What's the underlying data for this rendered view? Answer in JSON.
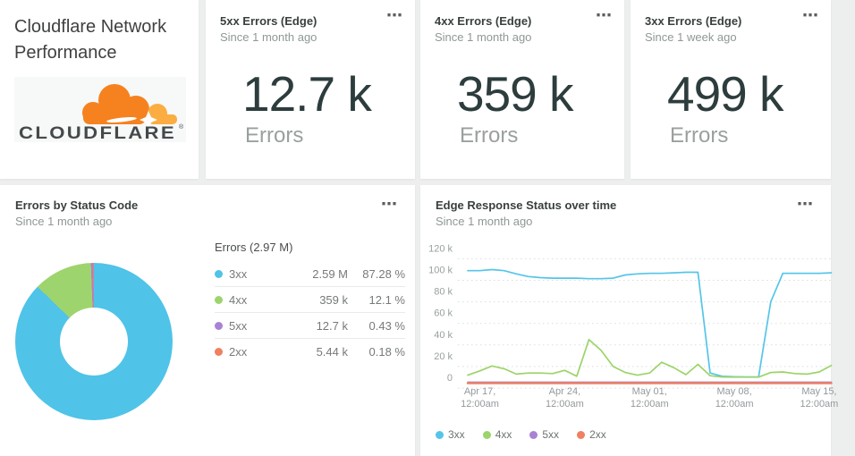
{
  "page": {
    "background": "#edefef",
    "card_background": "#ffffff"
  },
  "icons": {
    "card_menu": "⋯"
  },
  "title_card": {
    "heading": "Cloudflare Network Performance",
    "logo_text": "CLOUDFLARE",
    "logo_reg": "®",
    "logo_cloud_color": "#f6821f",
    "logo_cloud_light_color": "#fbad41",
    "logo_text_color": "#45494b"
  },
  "kpis": [
    {
      "title": "5xx Errors (Edge)",
      "subtitle": "Since 1 month ago",
      "value": "12.7 k",
      "unit_label": "Errors"
    },
    {
      "title": "4xx Errors (Edge)",
      "subtitle": "Since 1 month ago",
      "value": "359 k",
      "unit_label": "Errors"
    },
    {
      "title": "3xx Errors (Edge)",
      "subtitle": "Since 1 week ago",
      "value": "499 k",
      "unit_label": "Errors"
    }
  ],
  "chart_data": [
    {
      "type": "pie",
      "donut": true,
      "title": "Errors by Status Code",
      "subtitle": "Since 1 month ago",
      "total_label": "Errors (2.97 M)",
      "slices": [
        {
          "name": "3xx",
          "value_label": "2.59 M",
          "value": 2590000,
          "pct": 87.28,
          "pct_label": "87.28 %",
          "color": "#4fc3e8"
        },
        {
          "name": "4xx",
          "value_label": "359 k",
          "value": 359000,
          "pct": 12.1,
          "pct_label": "12.1 %",
          "color": "#9ed46e"
        },
        {
          "name": "5xx",
          "value_label": "12.7 k",
          "value": 12700,
          "pct": 0.43,
          "pct_label": "0.43 %",
          "color": "#a982d4"
        },
        {
          "name": "2xx",
          "value_label": "5.44 k",
          "value": 5440,
          "pct": 0.18,
          "pct_label": "0.18 %",
          "color": "#ef8060"
        }
      ]
    },
    {
      "type": "line",
      "title": "Edge Response Status over time",
      "subtitle": "Since 1 month ago",
      "grid": "dotted",
      "legend_position": "bottom",
      "ylim_k": [
        0,
        120
      ],
      "y_ticks": [
        {
          "v": 120,
          "label": "120 k"
        },
        {
          "v": 100,
          "label": "100 k"
        },
        {
          "v": 80,
          "label": "80 k"
        },
        {
          "v": 60,
          "label": "60 k"
        },
        {
          "v": 40,
          "label": "40 k"
        },
        {
          "v": 20,
          "label": "20 k"
        },
        {
          "v": 0,
          "label": "0"
        }
      ],
      "minor_grid_k": [
        110,
        90,
        70,
        50,
        30,
        10,
        -10
      ],
      "x_ticks": [
        {
          "day": 1,
          "label": "Apr 17,\n12:00am"
        },
        {
          "day": 8,
          "label": "Apr 24,\n12:00am"
        },
        {
          "day": 15,
          "label": "May 01,\n12:00am"
        },
        {
          "day": 22,
          "label": "May 08,\n12:00am"
        },
        {
          "day": 29,
          "label": "May 15,\n12:00am"
        }
      ],
      "series": [
        {
          "name": "3xx",
          "color": "#54c5e9",
          "width": 1.7,
          "offset_y": 0,
          "values_k": [
            99,
            99,
            100,
            99,
            96,
            93.5,
            92.5,
            92,
            92,
            92,
            91.5,
            91.5,
            92,
            95,
            96,
            96.5,
            96.5,
            97,
            97.5,
            97.5,
            4,
            1,
            0.5,
            0.3,
            0.3,
            70,
            96.5,
            96.5,
            96.5,
            96.5,
            97
          ]
        },
        {
          "name": "4xx",
          "color": "#9bd46a",
          "width": 1.7,
          "offset_y": 0,
          "values_k": [
            2,
            6,
            10.5,
            8,
            3,
            4,
            4,
            3.5,
            6.5,
            1,
            35,
            25,
            10,
            4.5,
            2,
            4,
            14,
            9,
            2.5,
            12,
            1.5,
            0.3,
            0.2,
            0.2,
            0.2,
            4.5,
            5,
            3.5,
            3,
            5,
            11
          ]
        },
        {
          "name": "5xx",
          "color": "#a982d4",
          "width": 1.7,
          "offset_y": 6,
          "values_k": [
            0.4,
            0.4,
            0.4,
            0.4,
            0.4,
            0.4,
            0.4,
            0.4,
            0.4,
            0.4,
            0.4,
            0.4,
            0.4,
            0.4,
            0.4,
            0.4,
            0.4,
            0.4,
            0.4,
            0.4,
            0.4,
            0.4,
            0.4,
            0.4,
            0.4,
            0.4,
            0.4,
            0.4,
            0.4,
            0.4,
            0.4
          ]
        },
        {
          "name": "2xx",
          "color": "#ef8060",
          "width": 2.4,
          "offset_y": 7,
          "values_k": [
            0.3,
            0.3,
            0.3,
            0.3,
            0.3,
            0.3,
            0.3,
            0.3,
            0.3,
            0.3,
            0.3,
            0.3,
            0.3,
            0.3,
            0.3,
            0.3,
            0.3,
            0.3,
            0.3,
            0.3,
            0.3,
            0.3,
            0.3,
            0.3,
            0.3,
            0.3,
            0.3,
            0.3,
            0.3,
            0.3,
            0.3
          ]
        }
      ]
    }
  ]
}
